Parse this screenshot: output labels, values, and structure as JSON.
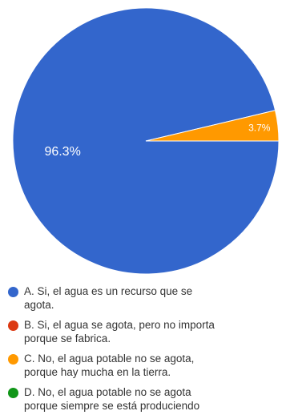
{
  "chart_data": {
    "type": "pie",
    "title": "",
    "slices": [
      {
        "label": "A. Si, el agua es un recurso que se agota.",
        "value": 96.3,
        "display": "96.3%",
        "color": "#3366cc"
      },
      {
        "label": "B. Si, el agua se agota, pero no importa porque se fabrica.",
        "value": 0,
        "display": "",
        "color": "#dc3912"
      },
      {
        "label": "C. No, el agua potable no se agota, porque hay mucha en la tierra.",
        "value": 3.7,
        "display": "3.7%",
        "color": "#ff9900"
      },
      {
        "label": "D. No, el agua potable no se agota porque siempre se está produciendo",
        "value": 0,
        "display": "",
        "color": "#109618"
      }
    ],
    "legend_position": "bottom"
  },
  "legend": {
    "items": [
      {
        "text": "A. Si, el agua es un recurso que se\nagota.",
        "color": "#3366cc"
      },
      {
        "text": "B. Si, el agua se agota, pero no importa\nporque se fabrica.",
        "color": "#dc3912"
      },
      {
        "text": "C. No, el agua potable no se agota,\nporque hay mucha en la tierra.",
        "color": "#ff9900"
      },
      {
        "text": "D. No, el agua potable no se agota\nporque siempre se está produciendo",
        "color": "#109618"
      }
    ]
  }
}
